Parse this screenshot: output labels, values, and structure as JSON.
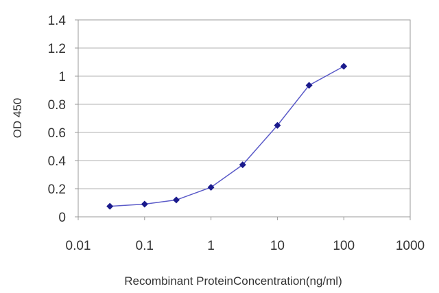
{
  "chart_data": {
    "type": "line",
    "title": "",
    "xlabel": "Recombinant ProteinConcentration(ng/ml)",
    "ylabel": "OD 450",
    "x_scale": "log",
    "xlim": [
      0.01,
      1000
    ],
    "ylim": [
      0,
      1.4
    ],
    "x_ticks": [
      0.01,
      0.1,
      1,
      10,
      100,
      1000
    ],
    "x_tick_labels": [
      "0.01",
      "0.1",
      "1",
      "10",
      "100",
      "1000"
    ],
    "y_ticks": [
      0,
      0.2,
      0.4,
      0.6,
      0.8,
      1,
      1.2,
      1.4
    ],
    "y_tick_labels": [
      "0",
      "0.2",
      "0.4",
      "0.6",
      "0.8",
      "1",
      "1.2",
      "1.4"
    ],
    "grid": "horizontal",
    "legend": "none",
    "series": [
      {
        "x": [
          0.03,
          0.1,
          0.3,
          1,
          3,
          10,
          30,
          100
        ],
        "y": [
          0.075,
          0.09,
          0.12,
          0.21,
          0.37,
          0.65,
          0.935,
          1.07
        ],
        "color": "#1a1a8c",
        "marker": "diamond"
      }
    ]
  }
}
